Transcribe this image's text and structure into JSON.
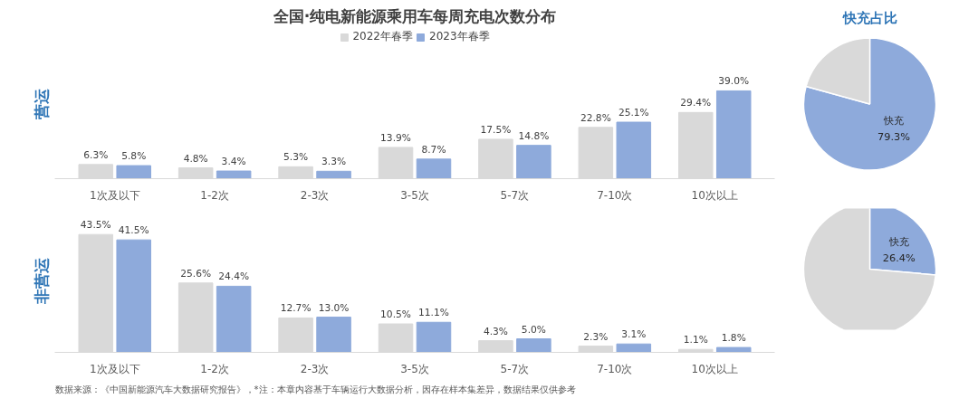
{
  "chart_data": [
    {
      "type": "bar",
      "title": "全国·纯电新能源乘用车每周充电次数分布",
      "ylabel": "营运",
      "legend": "top",
      "categories": [
        "1次及以下",
        "1-2次",
        "2-3次",
        "3-5次",
        "5-7次",
        "7-10次",
        "10次以上"
      ],
      "series": [
        {
          "name": "2022年春季",
          "color": "#d9d9d9",
          "values": [
            6.3,
            4.8,
            5.3,
            13.9,
            17.5,
            22.8,
            29.4
          ],
          "value_labels": [
            "6.3%",
            "4.8%",
            "5.3%",
            "13.9%",
            "17.5%",
            "22.8%",
            "29.4%"
          ]
        },
        {
          "name": "2023年春季",
          "color": "#8eaadb",
          "values": [
            5.8,
            3.4,
            3.3,
            8.7,
            14.8,
            25.1,
            39.0
          ],
          "value_labels": [
            "5.8%",
            "3.4%",
            "3.3%",
            "8.7%",
            "14.8%",
            "25.1%",
            "39.0%"
          ]
        }
      ]
    },
    {
      "type": "bar",
      "ylabel": "非营运",
      "categories": [
        "1次及以下",
        "1-2次",
        "2-3次",
        "3-5次",
        "5-7次",
        "7-10次",
        "10次以上"
      ],
      "series": [
        {
          "color": "#d9d9d9",
          "values": [
            43.5,
            25.6,
            12.7,
            10.5,
            4.3,
            2.3,
            1.1
          ],
          "value_labels": [
            "43.5%",
            "25.6%",
            "12.7%",
            "10.5%",
            "4.3%",
            "2.3%",
            "1.1%"
          ]
        },
        {
          "color": "#8eaadb",
          "values": [
            41.5,
            24.4,
            13.0,
            11.1,
            5.0,
            3.1,
            1.8
          ],
          "value_labels": [
            "41.5%",
            "24.4%",
            "13.0%",
            "11.1%",
            "5.0%",
            "3.1%",
            "1.8%"
          ]
        }
      ],
      "annotations": [
        "数据来源：《中国新能源汽车大数据研究报告》，*注：本章内容基于车辆运行大数据分析，因存在样本集差异，数据结果仅供参考"
      ]
    },
    {
      "type": "pie",
      "title": "快充占比",
      "categories": [
        "快充",
        null
      ],
      "values": [
        79.3,
        20.7
      ],
      "colors": [
        "#8eaadb",
        "#d9d9d9"
      ],
      "value_labels": [
        "79.3%",
        null
      ]
    },
    {
      "type": "pie",
      "categories": [
        "快充",
        null
      ],
      "values": [
        26.4,
        73.6
      ],
      "colors": [
        "#8eaadb",
        "#d9d9d9"
      ],
      "value_labels": [
        "26.4%",
        null
      ]
    }
  ]
}
